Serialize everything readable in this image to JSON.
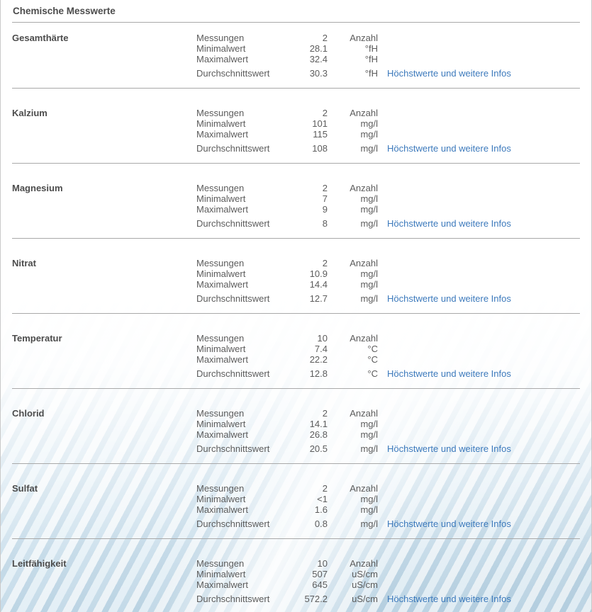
{
  "title": "Chemische Messwerte",
  "colors": {
    "link_blue": "#3d7abc",
    "divider_gray": "#a9a9a9",
    "text_gray": "#5c5c5c",
    "heading_gray": "#4c4c4c"
  },
  "sections": [
    {
      "name": "Gesamthärte",
      "rows": [
        {
          "label": "Messungen",
          "value": "2",
          "unit": "Anzahl"
        },
        {
          "label": "Minimalwert",
          "value": "28.1",
          "unit": "°fH"
        },
        {
          "label": "Maximalwert",
          "value": "32.4",
          "unit": "°fH"
        },
        {
          "label": "Durchschnittswert",
          "value": "30.3",
          "unit": "°fH",
          "link": "Höchstwerte und weitere Infos"
        }
      ]
    },
    {
      "name": "Kalzium",
      "rows": [
        {
          "label": "Messungen",
          "value": "2",
          "unit": "Anzahl"
        },
        {
          "label": "Minimalwert",
          "value": "101",
          "unit": "mg/l"
        },
        {
          "label": "Maximalwert",
          "value": "115",
          "unit": "mg/l"
        },
        {
          "label": "Durchschnittswert",
          "value": "108",
          "unit": "mg/l",
          "link": "Höchstwerte und weitere Infos"
        }
      ]
    },
    {
      "name": "Magnesium",
      "rows": [
        {
          "label": "Messungen",
          "value": "2",
          "unit": "Anzahl"
        },
        {
          "label": "Minimalwert",
          "value": "7",
          "unit": "mg/l"
        },
        {
          "label": "Maximalwert",
          "value": "9",
          "unit": "mg/l"
        },
        {
          "label": "Durchschnittswert",
          "value": "8",
          "unit": "mg/l",
          "link": "Höchstwerte und weitere Infos"
        }
      ]
    },
    {
      "name": "Nitrat",
      "rows": [
        {
          "label": "Messungen",
          "value": "2",
          "unit": "Anzahl"
        },
        {
          "label": "Minimalwert",
          "value": "10.9",
          "unit": "mg/l"
        },
        {
          "label": "Maximalwert",
          "value": "14.4",
          "unit": "mg/l"
        },
        {
          "label": "Durchschnittswert",
          "value": "12.7",
          "unit": "mg/l",
          "link": "Höchstwerte und weitere Infos"
        }
      ]
    },
    {
      "name": "Temperatur",
      "rows": [
        {
          "label": "Messungen",
          "value": "10",
          "unit": "Anzahl"
        },
        {
          "label": "Minimalwert",
          "value": "7.4",
          "unit": "°C"
        },
        {
          "label": "Maximalwert",
          "value": "22.2",
          "unit": "°C"
        },
        {
          "label": "Durchschnittswert",
          "value": "12.8",
          "unit": "°C",
          "link": "Höchstwerte und weitere Infos"
        }
      ]
    },
    {
      "name": "Chlorid",
      "rows": [
        {
          "label": "Messungen",
          "value": "2",
          "unit": "Anzahl"
        },
        {
          "label": "Minimalwert",
          "value": "14.1",
          "unit": "mg/l"
        },
        {
          "label": "Maximalwert",
          "value": "26.8",
          "unit": "mg/l"
        },
        {
          "label": "Durchschnittswert",
          "value": "20.5",
          "unit": "mg/l",
          "link": "Höchstwerte und weitere Infos"
        }
      ]
    },
    {
      "name": "Sulfat",
      "rows": [
        {
          "label": "Messungen",
          "value": "2",
          "unit": "Anzahl"
        },
        {
          "label": "Minimalwert",
          "value": "<1",
          "unit": "mg/l"
        },
        {
          "label": "Maximalwert",
          "value": "1.6",
          "unit": "mg/l"
        },
        {
          "label": "Durchschnittswert",
          "value": "0.8",
          "unit": "mg/l",
          "link": "Höchstwerte und weitere Infos"
        }
      ]
    },
    {
      "name": "Leitfähigkeit",
      "rows": [
        {
          "label": "Messungen",
          "value": "10",
          "unit": "Anzahl"
        },
        {
          "label": "Minimalwert",
          "value": "507",
          "unit": "uS/cm"
        },
        {
          "label": "Maximalwert",
          "value": "645",
          "unit": "uS/cm"
        },
        {
          "label": "Durchschnittswert",
          "value": "572.2",
          "unit": "uS/cm",
          "link": "Höchstwerte und weitere Infos"
        }
      ]
    }
  ]
}
